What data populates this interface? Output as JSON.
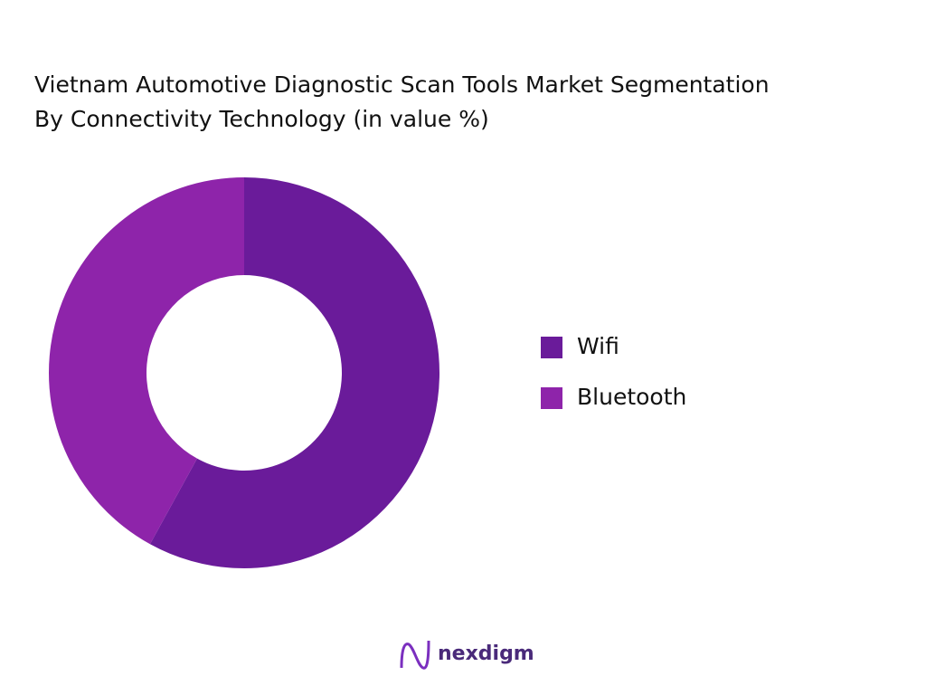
{
  "chart_data": {
    "type": "donut",
    "title": "Vietnam Automotive Diagnostic Scan Tools Market Segmentation",
    "subtitle": "By Connectivity Technology (in value %)",
    "categories": [
      "Wifi",
      "Bluetooth"
    ],
    "values": [
      58,
      42
    ],
    "colors": [
      "#6a1b9a",
      "#8e24aa"
    ]
  },
  "brand": "nexdigm"
}
